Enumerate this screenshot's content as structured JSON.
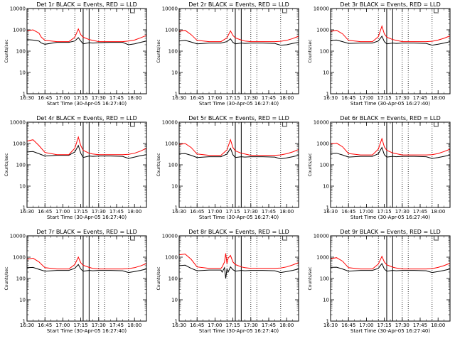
{
  "page": {
    "xlabel": "Start Time (30-Apr-05 16:27:40)",
    "ylabel": "Counts/sec",
    "line_colors": {
      "events": "#000000",
      "lld": "#ff0000"
    }
  },
  "chart_data": [
    {
      "type": "line",
      "title": "Det 1r BLACK = Events, RED = LLD",
      "xticks": [
        "16:30",
        "16:45",
        "17:00",
        "17:15",
        "17:30",
        "17:45",
        "18:00"
      ],
      "yticks": [
        "1",
        "10",
        "100",
        "1000",
        "10000"
      ],
      "yscale": "log",
      "ylim": [
        1,
        10000
      ],
      "xlim_minutes": [
        0,
        100
      ],
      "dotted_lines_minutes": [
        15,
        40,
        60,
        65,
        85
      ],
      "solid_lines_minutes": [
        47,
        52
      ],
      "series": [
        {
          "name": "",
          "color": "#000000",
          "x": [
            0,
            5,
            10,
            12,
            15,
            25,
            35,
            40,
            43,
            45,
            47,
            52,
            55,
            60,
            70,
            80,
            85,
            90,
            95,
            100
          ],
          "y": [
            350,
            330,
            300,
            240,
            210,
            260,
            260,
            300,
            430,
            300,
            220,
            250,
            240,
            250,
            260,
            260,
            200,
            220,
            260,
            300
          ]
        },
        {
          "name": "",
          "color": "#ff0000",
          "x": [
            0,
            5,
            10,
            12,
            15,
            25,
            35,
            40,
            43,
            45,
            47,
            52,
            55,
            60,
            70,
            80,
            85,
            90,
            95,
            100
          ],
          "y": [
            900,
            1000,
            700,
            450,
            320,
            280,
            280,
            450,
            1100,
            600,
            450,
            350,
            320,
            280,
            280,
            280,
            300,
            330,
            420,
            550
          ]
        }
      ]
    },
    {
      "type": "line",
      "title": "Det 2r BLACK = Events, RED = LLD",
      "xticks": [
        "16:30",
        "16:45",
        "17:00",
        "17:15",
        "17:30",
        "17:45",
        "18:00"
      ],
      "yticks": [
        "1",
        "10",
        "100",
        "1000",
        "10000"
      ],
      "yscale": "log",
      "ylim": [
        1,
        10000
      ],
      "xlim_minutes": [
        0,
        100
      ],
      "dotted_lines_minutes": [
        15,
        40,
        60,
        65,
        85
      ],
      "solid_lines_minutes": [
        47,
        52
      ],
      "series": [
        {
          "name": "",
          "color": "#000000",
          "x": [
            0,
            5,
            10,
            15,
            25,
            35,
            40,
            43,
            45,
            47,
            52,
            55,
            60,
            70,
            80,
            85,
            90,
            95,
            100
          ],
          "y": [
            300,
            320,
            270,
            220,
            240,
            240,
            280,
            380,
            260,
            220,
            240,
            230,
            240,
            240,
            230,
            190,
            200,
            230,
            260
          ]
        },
        {
          "name": "",
          "color": "#ff0000",
          "x": [
            0,
            5,
            10,
            15,
            25,
            35,
            40,
            43,
            45,
            47,
            52,
            55,
            60,
            70,
            80,
            85,
            90,
            95,
            100
          ],
          "y": [
            850,
            950,
            600,
            320,
            280,
            280,
            420,
            900,
            550,
            420,
            330,
            300,
            280,
            280,
            280,
            290,
            320,
            390,
            500
          ]
        }
      ]
    },
    {
      "type": "line",
      "title": "Det 3r BLACK = Events, RED = LLD",
      "xticks": [
        "16:30",
        "16:45",
        "17:00",
        "17:15",
        "17:30",
        "17:45",
        "18:00"
      ],
      "yticks": [
        "1",
        "10",
        "100",
        "1000",
        "10000"
      ],
      "yscale": "log",
      "ylim": [
        1,
        10000
      ],
      "xlim_minutes": [
        0,
        100
      ],
      "dotted_lines_minutes": [
        15,
        40,
        60,
        65,
        85
      ],
      "solid_lines_minutes": [
        47,
        52
      ],
      "series": [
        {
          "name": "",
          "color": "#000000",
          "x": [
            0,
            5,
            10,
            15,
            25,
            35,
            40,
            43,
            45,
            47,
            52,
            55,
            60,
            70,
            80,
            85,
            90,
            95,
            100
          ],
          "y": [
            320,
            330,
            280,
            230,
            240,
            240,
            300,
            500,
            280,
            220,
            240,
            230,
            240,
            240,
            230,
            190,
            210,
            240,
            280
          ]
        },
        {
          "name": "",
          "color": "#ff0000",
          "x": [
            0,
            5,
            10,
            15,
            25,
            35,
            40,
            43,
            45,
            47,
            52,
            55,
            60,
            70,
            80,
            85,
            90,
            95,
            100
          ],
          "y": [
            850,
            950,
            650,
            320,
            280,
            280,
            480,
            1500,
            650,
            450,
            350,
            320,
            280,
            280,
            280,
            290,
            330,
            400,
            520
          ]
        }
      ]
    },
    {
      "type": "line",
      "title": "Det 4r BLACK = Events, RED = LLD",
      "xticks": [
        "16:30",
        "16:45",
        "17:00",
        "17:15",
        "17:30",
        "17:45",
        "18:00"
      ],
      "yticks": [
        "1",
        "10",
        "100",
        "1000",
        "10000"
      ],
      "yscale": "log",
      "ylim": [
        1,
        10000
      ],
      "xlim_minutes": [
        0,
        100
      ],
      "dotted_lines_minutes": [
        15,
        40,
        60,
        65,
        85
      ],
      "solid_lines_minutes": [
        47,
        52
      ],
      "series": [
        {
          "name": "",
          "color": "#000000",
          "x": [
            0,
            5,
            10,
            15,
            25,
            35,
            40,
            43,
            45,
            47,
            52,
            55,
            60,
            70,
            80,
            85,
            90,
            95,
            100
          ],
          "y": [
            400,
            420,
            330,
            260,
            280,
            280,
            400,
            800,
            350,
            220,
            260,
            250,
            260,
            260,
            250,
            200,
            230,
            270,
            300
          ]
        },
        {
          "name": "",
          "color": "#ff0000",
          "x": [
            0,
            5,
            10,
            15,
            25,
            35,
            40,
            43,
            45,
            47,
            52,
            55,
            60,
            70,
            80,
            85,
            90,
            95,
            100
          ],
          "y": [
            1300,
            1500,
            800,
            380,
            300,
            300,
            600,
            2000,
            800,
            480,
            350,
            320,
            300,
            300,
            300,
            310,
            350,
            440,
            600
          ]
        }
      ]
    },
    {
      "type": "line",
      "title": "Det 5r BLACK = Events, RED = LLD",
      "xticks": [
        "16:30",
        "16:45",
        "17:00",
        "17:15",
        "17:30",
        "17:45",
        "18:00"
      ],
      "yticks": [
        "1",
        "10",
        "100",
        "1000",
        "10000"
      ],
      "yscale": "log",
      "ylim": [
        1,
        10000
      ],
      "xlim_minutes": [
        0,
        100
      ],
      "dotted_lines_minutes": [
        15,
        40,
        60,
        65,
        85
      ],
      "solid_lines_minutes": [
        47,
        52
      ],
      "series": [
        {
          "name": "",
          "color": "#000000",
          "x": [
            0,
            5,
            10,
            15,
            25,
            35,
            40,
            43,
            45,
            47,
            52,
            55,
            60,
            70,
            80,
            85,
            90,
            95,
            100
          ],
          "y": [
            330,
            340,
            280,
            220,
            240,
            240,
            320,
            600,
            300,
            220,
            240,
            230,
            240,
            240,
            230,
            190,
            210,
            240,
            280
          ]
        },
        {
          "name": "",
          "color": "#ff0000",
          "x": [
            0,
            5,
            10,
            15,
            25,
            35,
            40,
            43,
            45,
            47,
            52,
            55,
            60,
            70,
            80,
            85,
            90,
            95,
            100
          ],
          "y": [
            900,
            1000,
            650,
            320,
            280,
            280,
            500,
            1500,
            650,
            450,
            350,
            320,
            280,
            280,
            280,
            290,
            330,
            400,
            520
          ]
        }
      ]
    },
    {
      "type": "line",
      "title": "Det 6r BLACK = Events, RED = LLD",
      "xticks": [
        "16:30",
        "16:45",
        "17:00",
        "17:15",
        "17:30",
        "17:45",
        "18:00"
      ],
      "yticks": [
        "1",
        "10",
        "100",
        "1000",
        "10000"
      ],
      "yscale": "log",
      "ylim": [
        1,
        10000
      ],
      "xlim_minutes": [
        0,
        100
      ],
      "dotted_lines_minutes": [
        15,
        40,
        60,
        65,
        85
      ],
      "solid_lines_minutes": [
        47,
        52
      ],
      "series": [
        {
          "name": "",
          "color": "#000000",
          "x": [
            0,
            5,
            10,
            15,
            25,
            35,
            40,
            43,
            45,
            47,
            52,
            55,
            60,
            70,
            80,
            85,
            90,
            95,
            100
          ],
          "y": [
            340,
            350,
            290,
            230,
            250,
            250,
            330,
            650,
            300,
            230,
            250,
            240,
            250,
            250,
            240,
            200,
            220,
            250,
            290
          ]
        },
        {
          "name": "",
          "color": "#ff0000",
          "x": [
            0,
            5,
            10,
            15,
            25,
            35,
            40,
            43,
            45,
            47,
            52,
            55,
            60,
            70,
            80,
            85,
            90,
            95,
            100
          ],
          "y": [
            950,
            1050,
            700,
            340,
            290,
            290,
            550,
            1700,
            700,
            480,
            360,
            330,
            290,
            290,
            290,
            300,
            340,
            420,
            540
          ]
        }
      ]
    },
    {
      "type": "line",
      "title": "Det 7r BLACK = Events, RED = LLD",
      "xticks": [
        "16:30",
        "16:45",
        "17:00",
        "17:15",
        "17:30",
        "17:45",
        "18:00"
      ],
      "yticks": [
        "1",
        "10",
        "100",
        "1000",
        "10000"
      ],
      "yscale": "log",
      "ylim": [
        1,
        10000
      ],
      "xlim_minutes": [
        0,
        100
      ],
      "dotted_lines_minutes": [
        15,
        40,
        60,
        65,
        85
      ],
      "solid_lines_minutes": [
        47,
        52
      ],
      "series": [
        {
          "name": "",
          "color": "#000000",
          "x": [
            0,
            5,
            10,
            15,
            25,
            35,
            40,
            43,
            45,
            47,
            52,
            55,
            60,
            70,
            80,
            85,
            90,
            95,
            100
          ],
          "y": [
            320,
            330,
            270,
            220,
            240,
            240,
            300,
            450,
            280,
            220,
            240,
            230,
            240,
            240,
            230,
            190,
            210,
            240,
            280
          ]
        },
        {
          "name": "",
          "color": "#ff0000",
          "x": [
            0,
            5,
            10,
            15,
            25,
            35,
            40,
            43,
            45,
            47,
            52,
            55,
            60,
            70,
            80,
            85,
            90,
            95,
            100
          ],
          "y": [
            800,
            900,
            600,
            320,
            280,
            280,
            450,
            1000,
            550,
            420,
            330,
            300,
            280,
            280,
            280,
            290,
            320,
            390,
            500
          ]
        }
      ]
    },
    {
      "type": "line",
      "title": "Det 8r BLACK = Events, RED = LLD",
      "xticks": [
        "16:30",
        "16:45",
        "17:00",
        "17:15",
        "17:30",
        "17:45",
        "18:00"
      ],
      "yticks": [
        "1",
        "10",
        "100",
        "1000",
        "10000"
      ],
      "yscale": "log",
      "ylim": [
        1,
        10000
      ],
      "xlim_minutes": [
        0,
        100
      ],
      "dotted_lines_minutes": [
        15,
        40,
        60,
        65,
        85
      ],
      "solid_lines_minutes": [
        47,
        52
      ],
      "series": [
        {
          "name": "",
          "color": "#000000",
          "x": [
            0,
            5,
            10,
            15,
            25,
            35,
            36,
            38,
            39,
            40,
            41,
            43,
            45,
            47,
            52,
            55,
            60,
            70,
            80,
            85,
            90,
            95,
            100
          ],
          "y": [
            400,
            420,
            300,
            230,
            250,
            250,
            200,
            320,
            100,
            280,
            200,
            350,
            260,
            220,
            240,
            230,
            240,
            240,
            230,
            190,
            210,
            240,
            280
          ]
        },
        {
          "name": "",
          "color": "#ff0000",
          "x": [
            0,
            5,
            10,
            15,
            25,
            35,
            36,
            38,
            39,
            40,
            41,
            43,
            45,
            47,
            52,
            55,
            60,
            70,
            80,
            85,
            90,
            95,
            100
          ],
          "y": [
            1300,
            1400,
            800,
            350,
            300,
            300,
            350,
            600,
            1500,
            500,
            900,
            1200,
            600,
            450,
            350,
            320,
            300,
            300,
            300,
            310,
            350,
            430,
            560
          ]
        }
      ]
    },
    {
      "type": "line",
      "title": "Det 9r BLACK = Events, RED = LLD",
      "xticks": [
        "16:30",
        "16:45",
        "17:00",
        "17:15",
        "17:30",
        "17:45",
        "18:00"
      ],
      "yticks": [
        "1",
        "10",
        "100",
        "1000",
        "10000"
      ],
      "yscale": "log",
      "ylim": [
        1,
        10000
      ],
      "xlim_minutes": [
        0,
        100
      ],
      "dotted_lines_minutes": [
        15,
        40,
        60,
        65,
        85
      ],
      "solid_lines_minutes": [
        47,
        52
      ],
      "series": [
        {
          "name": "",
          "color": "#000000",
          "x": [
            0,
            5,
            10,
            15,
            25,
            35,
            40,
            43,
            45,
            47,
            52,
            55,
            60,
            70,
            80,
            85,
            90,
            95,
            100
          ],
          "y": [
            330,
            340,
            280,
            220,
            240,
            240,
            300,
            500,
            280,
            220,
            240,
            230,
            240,
            240,
            230,
            190,
            210,
            240,
            280
          ]
        },
        {
          "name": "",
          "color": "#ff0000",
          "x": [
            0,
            5,
            10,
            15,
            25,
            35,
            40,
            43,
            45,
            47,
            52,
            55,
            60,
            70,
            80,
            85,
            90,
            95,
            100
          ],
          "y": [
            850,
            950,
            650,
            320,
            280,
            280,
            480,
            1100,
            600,
            440,
            340,
            310,
            280,
            280,
            280,
            290,
            330,
            400,
            520
          ]
        }
      ]
    }
  ]
}
